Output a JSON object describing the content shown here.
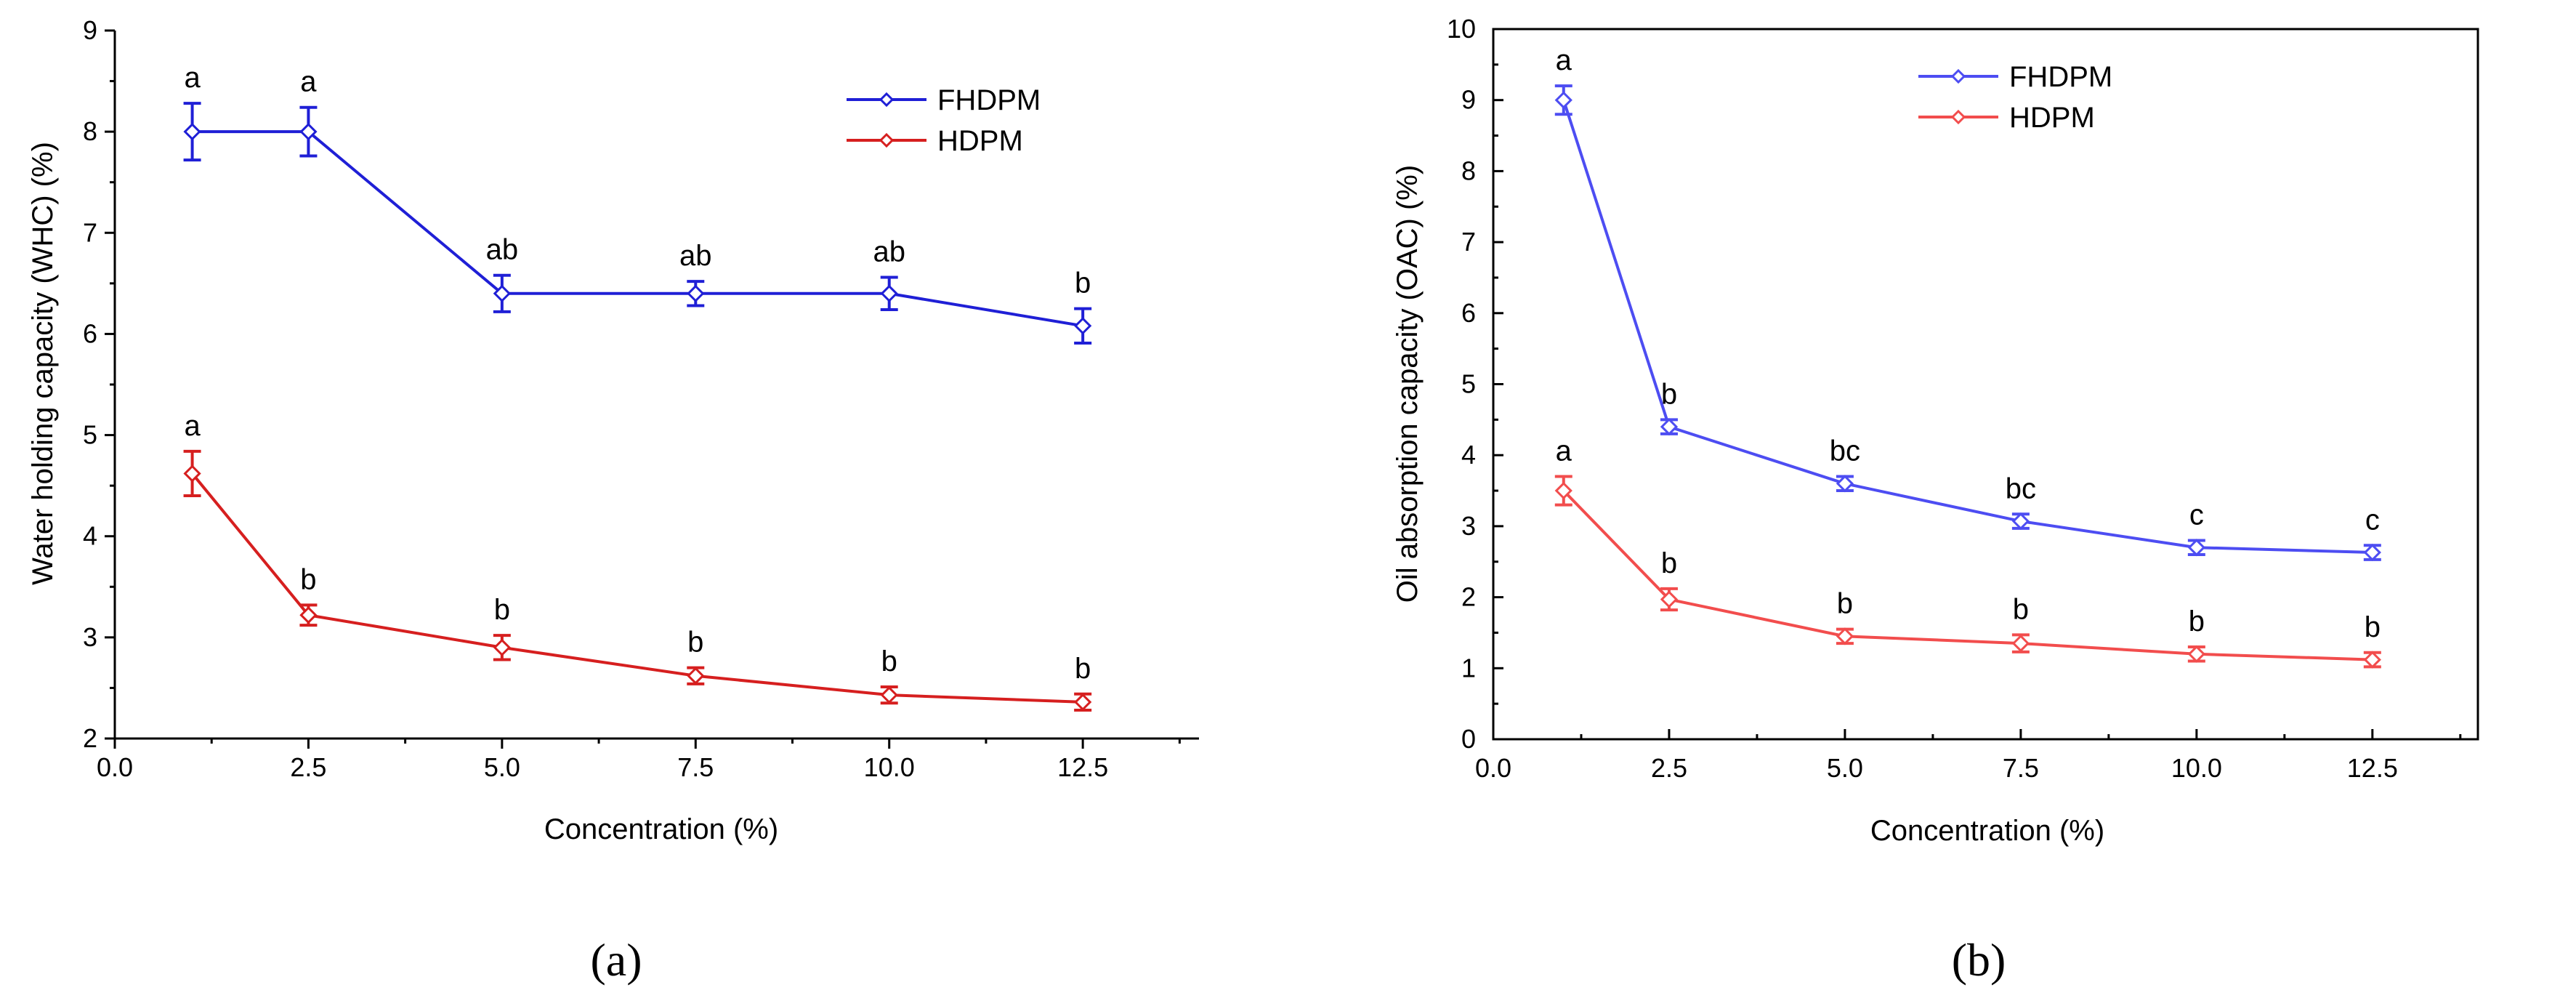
{
  "chart_data": [
    {
      "type": "line",
      "panel_label": "(a)",
      "xlabel": "Concentration (%)",
      "ylabel": "Water holding capacity (WHC) (%)",
      "xlim": [
        0,
        14
      ],
      "ylim": [
        2,
        9
      ],
      "x_ticks": [
        "0.0",
        "2.5",
        "5.0",
        "7.5",
        "10.0",
        "12.5"
      ],
      "y_ticks": [
        "2",
        "3",
        "4",
        "5",
        "6",
        "7",
        "8",
        "9"
      ],
      "legend_position": "top-right",
      "series": [
        {
          "name": "FHDPM",
          "color": "#1f1fd6",
          "x": [
            1,
            2.5,
            5,
            7.5,
            10,
            12.5
          ],
          "values": [
            8.0,
            8.0,
            6.4,
            6.4,
            6.4,
            6.08
          ],
          "errors": [
            0.28,
            0.24,
            0.18,
            0.12,
            0.16,
            0.17
          ],
          "labels": [
            "a",
            "a",
            "ab",
            "ab",
            "ab",
            "b"
          ]
        },
        {
          "name": "HDPM",
          "color": "#d61f1f",
          "x": [
            1,
            2.5,
            5,
            7.5,
            10,
            12.5
          ],
          "values": [
            4.62,
            3.22,
            2.9,
            2.62,
            2.43,
            2.36
          ],
          "errors": [
            0.22,
            0.1,
            0.12,
            0.08,
            0.08,
            0.08
          ],
          "labels": [
            "a",
            "b",
            "b",
            "b",
            "b",
            "b"
          ]
        }
      ]
    },
    {
      "type": "line",
      "panel_label": "(b)",
      "xlabel": "Concentration (%)",
      "ylabel": "Oil absorption capacity (OAC) (%)",
      "xlim": [
        0,
        14
      ],
      "ylim": [
        0,
        10
      ],
      "x_ticks": [
        "0.0",
        "2.5",
        "5.0",
        "7.5",
        "10.0",
        "12.5"
      ],
      "y_ticks": [
        "0",
        "1",
        "2",
        "3",
        "4",
        "5",
        "6",
        "7",
        "8",
        "9",
        "10"
      ],
      "legend_position": "top-center",
      "series": [
        {
          "name": "FHDPM",
          "color": "#4d4df2",
          "x": [
            1,
            2.5,
            5,
            7.5,
            10,
            12.5
          ],
          "values": [
            9.0,
            4.4,
            3.6,
            3.07,
            2.7,
            2.63
          ],
          "errors": [
            0.2,
            0.1,
            0.1,
            0.1,
            0.1,
            0.1
          ],
          "labels": [
            "a",
            "b",
            "bc",
            "bc",
            "c",
            "c"
          ]
        },
        {
          "name": "HDPM",
          "color": "#f24d4d",
          "x": [
            1,
            2.5,
            5,
            7.5,
            10,
            12.5
          ],
          "values": [
            3.5,
            1.97,
            1.45,
            1.35,
            1.2,
            1.12
          ],
          "errors": [
            0.2,
            0.15,
            0.1,
            0.12,
            0.1,
            0.1
          ],
          "labels": [
            "a",
            "b",
            "b",
            "b",
            "b",
            "b"
          ]
        }
      ]
    }
  ]
}
